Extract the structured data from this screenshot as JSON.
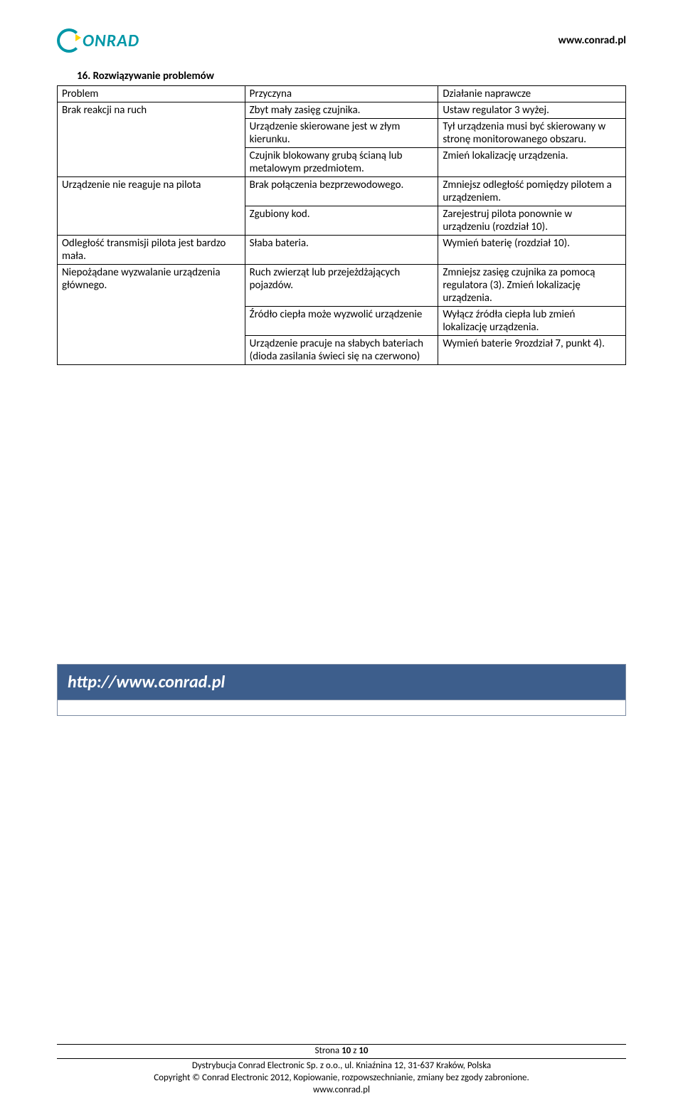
{
  "header": {
    "logo_text": "ONRAD",
    "url": "www.conrad.pl"
  },
  "section": {
    "heading": "16. Rozwiązywanie problemów"
  },
  "table": {
    "head": [
      "Problem",
      "Przyczyna",
      "Działanie naprawcze"
    ],
    "r1": {
      "c1": "Brak reakcji na ruch",
      "c2": "Zbyt mały zasięg czujnika.",
      "c3": "Ustaw regulator 3 wyżej."
    },
    "r2": {
      "c2": "Urządzenie skierowane jest w złym kierunku.",
      "c3": "Tył urządzenia musi być skierowany w stronę monitorowanego obszaru."
    },
    "r3": {
      "c2": "Czujnik blokowany grubą ścianą lub metalowym przedmiotem.",
      "c3": "Zmień lokalizację urządzenia."
    },
    "r4": {
      "c1": "Urządzenie nie reaguje na pilota",
      "c2": "Brak połączenia bezprzewodowego.",
      "c3": "Zmniejsz odległość pomiędzy pilotem a urządzeniem."
    },
    "r5": {
      "c2": "Zgubiony kod.",
      "c3": "Zarejestruj pilota ponownie w urządzeniu (rozdział 10)."
    },
    "r6": {
      "c1": "Odległość transmisji pilota jest bardzo mała.",
      "c2": "Słaba bateria.",
      "c3": "Wymień baterię (rozdział 10)."
    },
    "r7": {
      "c1": "Niepożądane wyzwalanie urządzenia głównego.",
      "c2": "Ruch zwierząt lub przejeżdżających pojazdów.",
      "c3": "Zmniejsz zasięg czujnika za pomocą regulatora (3). Zmień lokalizację urządzenia."
    },
    "r8": {
      "c2": "Źródło ciepła może wyzwolić urządzenie",
      "c3": "Wyłącz źródła ciepła lub zmień lokalizację urządzenia."
    },
    "r9": {
      "c2": "Urządzenie pracuje na słabych bateriach (dioda zasilania świeci się na czerwono)",
      "c3": "Wymień baterie 9rozdział 7, punkt 4)."
    }
  },
  "linkbox": {
    "url": "http://www.conrad.pl"
  },
  "footer": {
    "page": "Strona 10 z 10",
    "line1": "Dystrybucja Conrad Electronic Sp. z o.o., ul. Kniaźnina 12, 31-637 Kraków, Polska",
    "line2": "Copyright © Conrad Electronic 2012, Kopiowanie, rozpowszechnianie, zmiany bez zgody zabronione.",
    "line3": "www.conrad.pl"
  }
}
